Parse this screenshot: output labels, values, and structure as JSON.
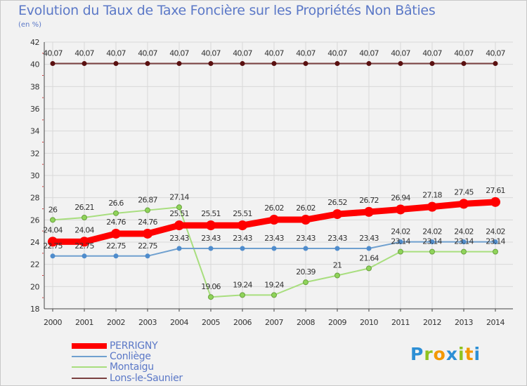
{
  "header": {
    "title": "Evolution du Taux de Taxe Foncière sur les Propriétés Non Bâties",
    "subtitle": "(en %)"
  },
  "chart_data": {
    "type": "line",
    "title": "Evolution du Taux de Taxe Foncière sur les Propriétés Non Bâties",
    "ylabel": "(en %)",
    "xlabel": "",
    "ylim": [
      18,
      42
    ],
    "yticks": [
      18,
      20,
      22,
      24,
      26,
      28,
      30,
      32,
      34,
      36,
      38,
      40,
      42
    ],
    "x": [
      "2000",
      "2001",
      "2002",
      "2003",
      "2004",
      "2005",
      "2006",
      "2007",
      "2008",
      "2009",
      "2010",
      "2011",
      "2012",
      "2013",
      "2014"
    ],
    "grid": true,
    "series": [
      {
        "name": "PERRIGNY",
        "color": "#ff0000",
        "values": [
          24.04,
          24.04,
          24.76,
          24.76,
          25.51,
          25.51,
          25.51,
          26.02,
          26.02,
          26.52,
          26.72,
          26.94,
          27.18,
          27.45,
          27.61
        ],
        "labels": [
          "24.04",
          "24.04",
          "24.76",
          "24.76",
          "25.51",
          "25.51",
          "25.51",
          "26.02",
          "26.02",
          "26.52",
          "26.72",
          "26.94",
          "27.18",
          "27.45",
          "27.61"
        ]
      },
      {
        "name": "Conliège",
        "color": "#6fa0cf",
        "values": [
          22.75,
          22.75,
          22.75,
          22.75,
          23.43,
          23.43,
          23.43,
          23.43,
          23.43,
          23.43,
          23.43,
          24.02,
          24.02,
          24.02,
          24.02
        ],
        "labels": [
          "22.75",
          "22.75",
          "22.75",
          "22.75",
          "23.43",
          "23.43",
          "23.43",
          "23.43",
          "23.43",
          "23.43",
          "23.43",
          "24.02",
          "24.02",
          "24.02",
          "24.02"
        ]
      },
      {
        "name": "Montaigu",
        "color": "#a8de7e",
        "values": [
          26,
          26.21,
          26.6,
          26.87,
          27.14,
          19.06,
          19.24,
          19.24,
          20.39,
          21,
          21.64,
          23.14,
          23.14,
          23.14,
          23.14
        ],
        "labels": [
          "26",
          "26.21",
          "26.6",
          "26.87",
          "27.14",
          "19.06",
          "19.24",
          "19.24",
          "20.39",
          "21",
          "21.64",
          "23.14",
          "23.14",
          "23.14",
          "23.14"
        ]
      },
      {
        "name": "Lons-le-Saunier",
        "color": "#7a4040",
        "values": [
          40.07,
          40.07,
          40.07,
          40.07,
          40.07,
          40.07,
          40.07,
          40.07,
          40.07,
          40.07,
          40.07,
          40.07,
          40.07,
          40.07,
          40.07
        ],
        "labels": [
          "40.07",
          "40.07",
          "40.07",
          "40.07",
          "40.07",
          "40.07",
          "40.07",
          "40.07",
          "40.07",
          "40.07",
          "40.07",
          "40.07",
          "40.07",
          "40.07",
          "40.07"
        ]
      }
    ],
    "legend": [
      "PERRIGNY",
      "Conliège",
      "Montaigu",
      "Lons-le-Saunier"
    ]
  },
  "logo": {
    "letters": [
      "P",
      "r",
      "o",
      "x",
      "i",
      "t",
      "i"
    ],
    "colors": [
      "#2d8fd5",
      "#8fc31f",
      "#f39800",
      "#2d8fd5",
      "#8fc31f",
      "#f39800",
      "#2d8fd5"
    ]
  }
}
